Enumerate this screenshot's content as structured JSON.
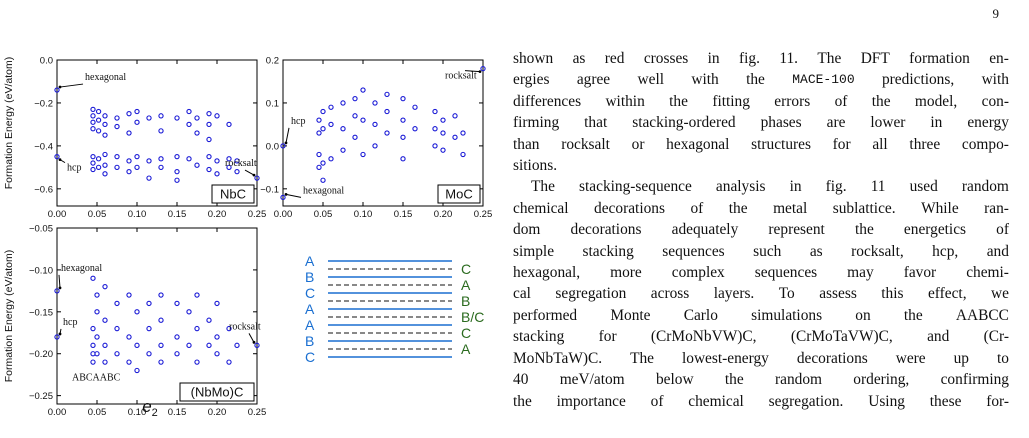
{
  "page_number": "9",
  "figure": {
    "y_label": "Formation Energy (eV/atom)",
    "x_label": "e2",
    "x_ticks": [
      "0.00",
      "0.05",
      "0.10",
      "0.15",
      "0.20",
      "0.25"
    ],
    "stacking_legend": {
      "left_labels": [
        "A",
        "B",
        "C",
        "A",
        "A",
        "B",
        "C"
      ],
      "right_labels": [
        "C",
        "A",
        "B",
        "B/C",
        "C",
        "A"
      ],
      "left_color": "#1a6fd1",
      "right_color": "#2b6b1f"
    }
  },
  "chart_data": [
    {
      "type": "scatter",
      "label": "NbC",
      "xlim": [
        0.0,
        0.25
      ],
      "ylim": [
        -0.68,
        0.0
      ],
      "y_ticks": [
        "0.0",
        "−0.2",
        "−0.4",
        "−0.6"
      ],
      "annotations": [
        "hexagonal",
        "hcp",
        "rocksalt"
      ],
      "points": [
        [
          0.0,
          -0.14
        ],
        [
          0.0,
          -0.45
        ],
        [
          0.25,
          -0.55
        ],
        [
          0.045,
          -0.23
        ],
        [
          0.045,
          -0.26
        ],
        [
          0.045,
          -0.29
        ],
        [
          0.045,
          -0.32
        ],
        [
          0.045,
          -0.45
        ],
        [
          0.045,
          -0.48
        ],
        [
          0.045,
          -0.51
        ],
        [
          0.052,
          -0.24
        ],
        [
          0.052,
          -0.28
        ],
        [
          0.052,
          -0.33
        ],
        [
          0.052,
          -0.46
        ],
        [
          0.052,
          -0.5
        ],
        [
          0.06,
          -0.26
        ],
        [
          0.06,
          -0.3
        ],
        [
          0.06,
          -0.35
        ],
        [
          0.06,
          -0.44
        ],
        [
          0.06,
          -0.49
        ],
        [
          0.06,
          -0.53
        ],
        [
          0.075,
          -0.27
        ],
        [
          0.075,
          -0.31
        ],
        [
          0.075,
          -0.45
        ],
        [
          0.075,
          -0.5
        ],
        [
          0.09,
          -0.25
        ],
        [
          0.09,
          -0.34
        ],
        [
          0.09,
          -0.47
        ],
        [
          0.09,
          -0.52
        ],
        [
          0.1,
          -0.24
        ],
        [
          0.1,
          -0.29
        ],
        [
          0.1,
          -0.45
        ],
        [
          0.1,
          -0.5
        ],
        [
          0.115,
          -0.27
        ],
        [
          0.115,
          -0.47
        ],
        [
          0.115,
          -0.55
        ],
        [
          0.13,
          -0.26
        ],
        [
          0.13,
          -0.33
        ],
        [
          0.13,
          -0.46
        ],
        [
          0.13,
          -0.5
        ],
        [
          0.15,
          -0.27
        ],
        [
          0.15,
          -0.45
        ],
        [
          0.15,
          -0.52
        ],
        [
          0.15,
          -0.56
        ],
        [
          0.165,
          -0.24
        ],
        [
          0.165,
          -0.3
        ],
        [
          0.165,
          -0.46
        ],
        [
          0.175,
          -0.27
        ],
        [
          0.175,
          -0.34
        ],
        [
          0.175,
          -0.49
        ],
        [
          0.19,
          -0.25
        ],
        [
          0.19,
          -0.3
        ],
        [
          0.19,
          -0.37
        ],
        [
          0.19,
          -0.45
        ],
        [
          0.19,
          -0.51
        ],
        [
          0.2,
          -0.26
        ],
        [
          0.2,
          -0.47
        ],
        [
          0.2,
          -0.53
        ],
        [
          0.215,
          -0.3
        ],
        [
          0.215,
          -0.46
        ],
        [
          0.215,
          -0.5
        ],
        [
          0.225,
          -0.47
        ],
        [
          0.225,
          -0.52
        ]
      ]
    },
    {
      "type": "scatter",
      "label": "MoC",
      "xlim": [
        0.0,
        0.25
      ],
      "ylim": [
        -0.14,
        0.2
      ],
      "y_ticks": [
        "0.2",
        "0.1",
        "0.0",
        "−0.1"
      ],
      "annotations": [
        "rocksalt",
        "hcp",
        "hexagonal"
      ],
      "points": [
        [
          0.25,
          0.18
        ],
        [
          0.0,
          0.0
        ],
        [
          0.0,
          -0.12
        ],
        [
          0.045,
          -0.05
        ],
        [
          0.045,
          -0.02
        ],
        [
          0.045,
          0.03
        ],
        [
          0.045,
          0.06
        ],
        [
          0.05,
          -0.08
        ],
        [
          0.05,
          -0.04
        ],
        [
          0.05,
          0.04
        ],
        [
          0.05,
          0.08
        ],
        [
          0.06,
          -0.03
        ],
        [
          0.06,
          0.05
        ],
        [
          0.06,
          0.09
        ],
        [
          0.075,
          -0.01
        ],
        [
          0.075,
          0.04
        ],
        [
          0.075,
          0.1
        ],
        [
          0.09,
          0.02
        ],
        [
          0.09,
          0.07
        ],
        [
          0.09,
          0.11
        ],
        [
          0.1,
          -0.02
        ],
        [
          0.1,
          0.06
        ],
        [
          0.1,
          0.13
        ],
        [
          0.115,
          0.0
        ],
        [
          0.115,
          0.05
        ],
        [
          0.115,
          0.1
        ],
        [
          0.13,
          0.03
        ],
        [
          0.13,
          0.08
        ],
        [
          0.13,
          0.12
        ],
        [
          0.15,
          -0.03
        ],
        [
          0.15,
          0.02
        ],
        [
          0.15,
          0.06
        ],
        [
          0.15,
          0.11
        ],
        [
          0.165,
          0.04
        ],
        [
          0.165,
          0.09
        ],
        [
          0.19,
          0.0
        ],
        [
          0.19,
          0.04
        ],
        [
          0.19,
          0.08
        ],
        [
          0.2,
          -0.01
        ],
        [
          0.2,
          0.03
        ],
        [
          0.2,
          0.06
        ],
        [
          0.215,
          0.02
        ],
        [
          0.215,
          0.07
        ],
        [
          0.225,
          -0.02
        ],
        [
          0.225,
          0.03
        ]
      ]
    },
    {
      "type": "scatter",
      "label": "(NbMo)C",
      "xlim": [
        0.0,
        0.25
      ],
      "ylim": [
        -0.26,
        -0.05
      ],
      "y_ticks": [
        "−0.05",
        "−0.10",
        "−0.15",
        "−0.20",
        "−0.25"
      ],
      "annotations": [
        "hexagonal",
        "hcp",
        "rocksalt",
        "ABCAABC"
      ],
      "points": [
        [
          0.0,
          -0.125
        ],
        [
          0.0,
          -0.18
        ],
        [
          0.25,
          -0.19
        ],
        [
          0.1,
          -0.22
        ],
        [
          0.045,
          -0.11
        ],
        [
          0.045,
          -0.17
        ],
        [
          0.045,
          -0.19
        ],
        [
          0.045,
          -0.2
        ],
        [
          0.045,
          -0.21
        ],
        [
          0.05,
          -0.13
        ],
        [
          0.05,
          -0.15
        ],
        [
          0.05,
          -0.18
        ],
        [
          0.05,
          -0.2
        ],
        [
          0.06,
          -0.12
        ],
        [
          0.06,
          -0.16
        ],
        [
          0.06,
          -0.19
        ],
        [
          0.06,
          -0.21
        ],
        [
          0.075,
          -0.14
        ],
        [
          0.075,
          -0.17
        ],
        [
          0.075,
          -0.2
        ],
        [
          0.09,
          -0.13
        ],
        [
          0.09,
          -0.18
        ],
        [
          0.09,
          -0.21
        ],
        [
          0.1,
          -0.15
        ],
        [
          0.1,
          -0.19
        ],
        [
          0.115,
          -0.14
        ],
        [
          0.115,
          -0.17
        ],
        [
          0.115,
          -0.2
        ],
        [
          0.13,
          -0.13
        ],
        [
          0.13,
          -0.16
        ],
        [
          0.13,
          -0.19
        ],
        [
          0.13,
          -0.21
        ],
        [
          0.15,
          -0.14
        ],
        [
          0.15,
          -0.18
        ],
        [
          0.15,
          -0.2
        ],
        [
          0.165,
          -0.15
        ],
        [
          0.165,
          -0.19
        ],
        [
          0.175,
          -0.13
        ],
        [
          0.175,
          -0.17
        ],
        [
          0.175,
          -0.21
        ],
        [
          0.19,
          -0.16
        ],
        [
          0.19,
          -0.19
        ],
        [
          0.2,
          -0.14
        ],
        [
          0.2,
          -0.18
        ],
        [
          0.2,
          -0.2
        ],
        [
          0.215,
          -0.17
        ],
        [
          0.215,
          -0.21
        ],
        [
          0.225,
          -0.19
        ]
      ]
    }
  ],
  "text_column": [
    {
      "text": "shown as red crosses in fig. 11. The DFT formation en-",
      "justify": true
    },
    {
      "text": "ergies agree well with the MACE-100 predictions, with",
      "justify": true
    },
    {
      "text": "differences within the fitting errors of the model, con-",
      "justify": true
    },
    {
      "text": "firming that stacking-ordered phases are lower in energy",
      "justify": true
    },
    {
      "text": "than rocksalt or hexagonal structures for all three compo-",
      "justify": true
    },
    {
      "text": "sitions.",
      "justify": false
    },
    {
      "text": "The stacking-sequence analysis in fig. 11 used random",
      "justify": true,
      "indent": true
    },
    {
      "text": "chemical decorations of the metal sublattice. While ran-",
      "justify": true
    },
    {
      "text": "dom decorations adequately represent the energetics of",
      "justify": true
    },
    {
      "text": "simple stacking sequences such as rocksalt, hcp, and",
      "justify": true
    },
    {
      "text": "hexagonal, more complex sequences may favor chemi-",
      "justify": true
    },
    {
      "text": "cal segregation across layers. To assess this effect, we",
      "justify": true
    },
    {
      "text": "performed Monte Carlo simulations on the AABCC",
      "justify": true
    },
    {
      "text": "stacking for (CrMoNbVW)C, (CrMoTaVW)C, and (Cr-",
      "justify": true
    },
    {
      "text": "MoNbTaW)C. The lowest-energy decorations were up to",
      "justify": true
    },
    {
      "text": "40 meV/atom below the random ordering, confirming",
      "justify": true
    },
    {
      "text": "the importance of chemical segregation. Using these for-",
      "justify": true
    }
  ]
}
